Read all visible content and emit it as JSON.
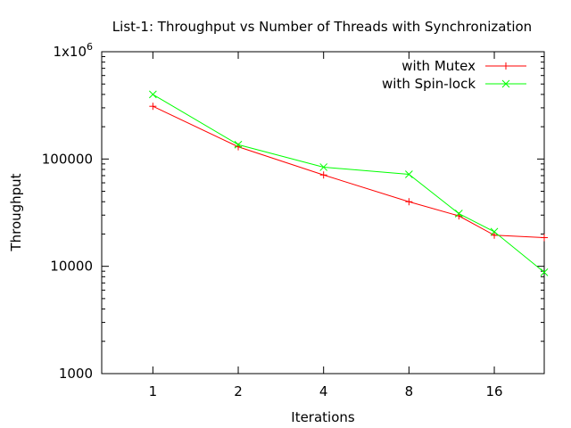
{
  "chart_data": {
    "type": "line",
    "title": "List-1: Throughput vs Number of Threads with Synchronization",
    "xlabel": "Iterations",
    "ylabel": "Throughput",
    "x_scale": "log2",
    "y_scale": "log10",
    "xlim": [
      0.66,
      24
    ],
    "ylim": [
      1000,
      1000000
    ],
    "x_ticks": [
      {
        "value": 1,
        "label": "1"
      },
      {
        "value": 2,
        "label": "2"
      },
      {
        "value": 4,
        "label": "4"
      },
      {
        "value": 8,
        "label": "8"
      },
      {
        "value": 16,
        "label": "16"
      }
    ],
    "y_ticks": [
      {
        "value": 1000,
        "label": "1000"
      },
      {
        "value": 10000,
        "label": "10000"
      },
      {
        "value": 100000,
        "label": "100000"
      },
      {
        "value": 1000000,
        "label": "1x10",
        "sup": "6"
      }
    ],
    "grid": false,
    "legend_position": "top-right",
    "series": [
      {
        "name": "with Mutex",
        "color": "#ff0000",
        "marker": "plus",
        "points": [
          {
            "x": 1,
            "y": 310000
          },
          {
            "x": 2,
            "y": 130000
          },
          {
            "x": 4,
            "y": 71000
          },
          {
            "x": 8,
            "y": 40000
          },
          {
            "x": 12,
            "y": 29500
          },
          {
            "x": 16,
            "y": 19500
          },
          {
            "x": 24,
            "y": 18500
          }
        ]
      },
      {
        "name": "with Spin-lock",
        "color": "#00ff00",
        "marker": "cross",
        "points": [
          {
            "x": 1,
            "y": 400000
          },
          {
            "x": 2,
            "y": 136000
          },
          {
            "x": 4,
            "y": 84000
          },
          {
            "x": 8,
            "y": 72000
          },
          {
            "x": 12,
            "y": 31000
          },
          {
            "x": 16,
            "y": 21000
          },
          {
            "x": 24,
            "y": 8800
          }
        ]
      }
    ]
  }
}
